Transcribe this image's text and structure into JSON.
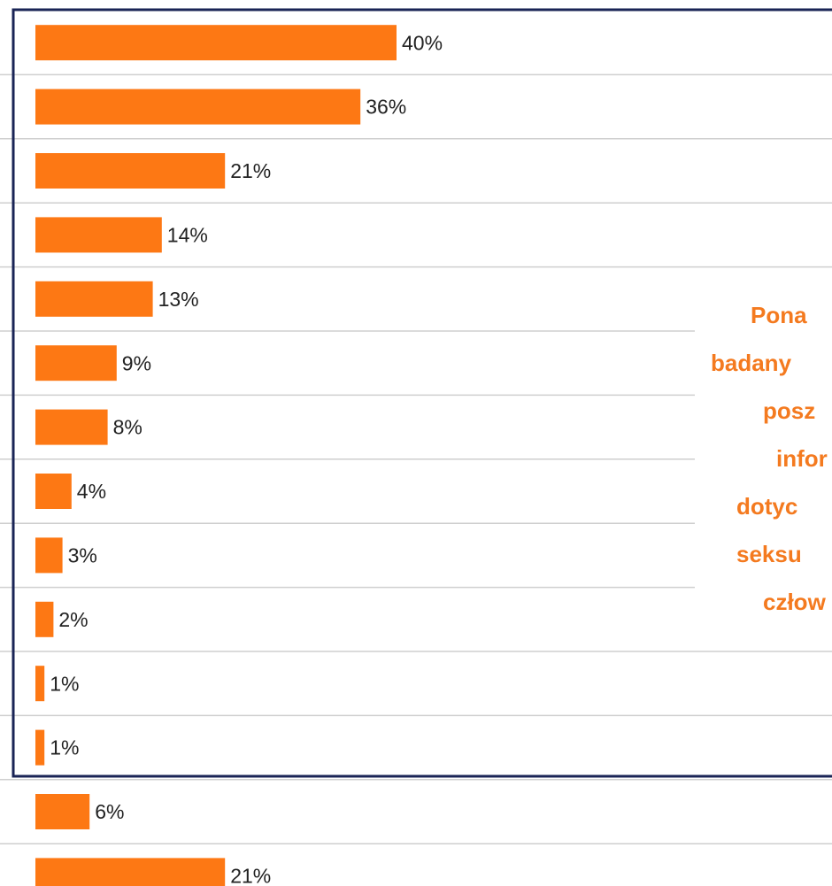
{
  "chart_data": {
    "type": "bar",
    "orientation": "horizontal",
    "color": "#fd7814",
    "categories": [
      null,
      null,
      null,
      null,
      null,
      null,
      null,
      null,
      null,
      null,
      null,
      null,
      null,
      null
    ],
    "values": [
      40,
      36,
      21,
      14,
      13,
      9,
      8,
      4,
      3,
      2,
      1,
      1,
      6,
      21
    ],
    "value_labels": [
      "40%",
      "36%",
      "21%",
      "14%",
      "13%",
      "9%",
      "8%",
      "4%",
      "3%",
      "2%",
      "1%",
      "1%",
      "6%",
      "21%"
    ],
    "annotation": [
      "Pona",
      "badany",
      "posz",
      "infor",
      "dotyc",
      "seksu",
      "człow"
    ]
  }
}
